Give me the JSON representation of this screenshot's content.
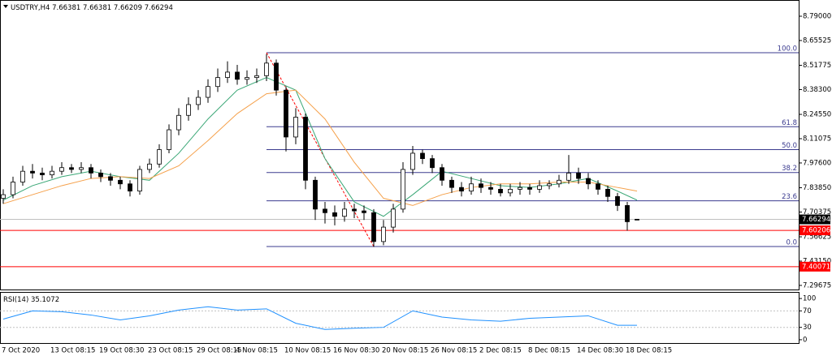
{
  "chart_data": {
    "type": "candlestick",
    "symbol": "USDTRY,H4",
    "categories": [
      "7 Oct 2020",
      null,
      null,
      null,
      null,
      "13 Oct 08:15",
      null,
      null,
      null,
      null,
      "19 Oct 08:30",
      null,
      null,
      null,
      null,
      "23 Oct 08:15",
      null,
      null,
      null,
      null,
      "29 Oct 08:15",
      null,
      null,
      null,
      "4 Nov 08:15",
      null,
      null,
      null,
      null,
      "10 Nov 08:15",
      null,
      null,
      null,
      null,
      "16 Nov 08:30",
      null,
      null,
      null,
      null,
      "20 Nov 08:15",
      null,
      null,
      null,
      null,
      "26 Nov 08:15",
      null,
      null,
      null,
      null,
      "2 Dec 08:15",
      null,
      null,
      null,
      null,
      "8 Dec 08:15",
      null,
      null,
      null,
      null,
      "14 Dec 08:30",
      null,
      null,
      null,
      null,
      "18 Dec 08:15",
      null
    ],
    "opens": [
      7.78,
      7.8,
      7.87,
      7.93,
      7.92,
      7.91,
      7.93,
      7.95,
      7.94,
      7.95,
      7.92,
      7.9,
      7.88,
      7.86,
      7.82,
      7.94,
      7.97,
      8.05,
      8.16,
      8.24,
      8.3,
      8.34,
      8.4,
      8.45,
      8.48,
      8.44,
      8.45,
      8.46,
      8.53,
      8.38,
      8.12,
      8.23,
      7.88,
      7.72,
      7.7,
      7.68,
      7.72,
      7.71,
      7.7,
      7.54,
      7.62,
      7.72,
      7.94,
      8.03,
      8.0,
      7.95,
      7.88,
      7.84,
      7.82,
      7.86,
      7.84,
      7.83,
      7.81,
      7.83,
      7.84,
      7.83,
      7.85,
      7.86,
      7.88,
      7.92,
      7.89,
      7.86,
      7.83,
      7.79,
      7.74,
      7.66381
    ],
    "highs": [
      7.83,
      7.9,
      7.96,
      7.97,
      7.95,
      7.96,
      7.98,
      7.97,
      7.98,
      7.97,
      7.94,
      7.92,
      7.9,
      7.88,
      7.96,
      8.0,
      8.08,
      8.19,
      8.28,
      8.34,
      8.38,
      8.44,
      8.5,
      8.54,
      8.52,
      8.49,
      8.5,
      8.58,
      8.55,
      8.4,
      8.28,
      8.25,
      7.9,
      7.76,
      7.74,
      7.76,
      7.75,
      7.74,
      7.72,
      7.66,
      7.75,
      7.98,
      8.07,
      8.05,
      8.02,
      7.97,
      7.9,
      7.87,
      7.9,
      7.89,
      7.87,
      7.86,
      7.86,
      7.87,
      7.86,
      7.88,
      7.88,
      7.91,
      8.02,
      7.95,
      7.92,
      7.88,
      7.85,
      7.81,
      7.76,
      7.66381
    ],
    "lows": [
      7.75,
      7.78,
      7.85,
      7.89,
      7.88,
      7.89,
      7.91,
      7.92,
      7.92,
      7.89,
      7.87,
      7.85,
      7.83,
      7.79,
      7.8,
      7.92,
      7.95,
      8.03,
      8.13,
      8.21,
      8.27,
      8.31,
      8.37,
      8.42,
      8.41,
      8.41,
      8.42,
      8.43,
      8.35,
      8.04,
      8.08,
      7.83,
      7.66,
      7.64,
      7.63,
      7.65,
      7.67,
      7.66,
      7.51,
      7.52,
      7.59,
      7.7,
      7.91,
      7.97,
      7.92,
      7.85,
      7.81,
      7.79,
      7.8,
      7.81,
      7.8,
      7.79,
      7.79,
      7.8,
      7.8,
      7.81,
      7.83,
      7.84,
      7.86,
      7.86,
      7.83,
      7.8,
      7.76,
      7.71,
      7.6,
      7.66209
    ],
    "closes": [
      7.8,
      7.87,
      7.93,
      7.92,
      7.91,
      7.93,
      7.95,
      7.94,
      7.95,
      7.92,
      7.9,
      7.88,
      7.86,
      7.82,
      7.94,
      7.97,
      8.05,
      8.16,
      8.24,
      8.3,
      8.34,
      8.4,
      8.45,
      8.48,
      8.44,
      8.45,
      8.46,
      8.53,
      8.38,
      8.12,
      8.23,
      7.88,
      7.72,
      7.7,
      7.68,
      7.72,
      7.71,
      7.7,
      7.54,
      7.62,
      7.72,
      7.94,
      8.03,
      8.0,
      7.95,
      7.88,
      7.84,
      7.82,
      7.86,
      7.84,
      7.83,
      7.81,
      7.83,
      7.84,
      7.83,
      7.85,
      7.86,
      7.88,
      7.92,
      7.89,
      7.86,
      7.83,
      7.79,
      7.74,
      7.65,
      7.66294
    ],
    "ylim": [
      7.274,
      8.862
    ],
    "yticks": [
      {
        "value": 8.79,
        "label": "8.79000"
      },
      8.65525,
      8.51775,
      {
        "value": 8.383,
        "label": "8.38300"
      },
      {
        "value": 8.2455,
        "label": "8.24550"
      },
      8.11075,
      {
        "value": 7.976,
        "label": "7.97600"
      },
      {
        "value": 7.8385,
        "label": "7.83850"
      },
      7.70375,
      7.56625,
      {
        "value": 7.4315,
        "label": "7.43150"
      },
      7.29675
    ],
    "moving_averages": [
      {
        "color": "#3aa776",
        "x": [
          0,
          3,
          6,
          9,
          12,
          15,
          18,
          21,
          24,
          27,
          30,
          33,
          36,
          39,
          42,
          45,
          48,
          51,
          54,
          57,
          60,
          63,
          65
        ],
        "values": [
          7.77,
          7.85,
          7.9,
          7.93,
          7.9,
          7.88,
          8.03,
          8.22,
          8.38,
          8.45,
          8.38,
          8.0,
          7.76,
          7.68,
          7.8,
          7.93,
          7.89,
          7.85,
          7.84,
          7.86,
          7.89,
          7.82,
          7.77
        ]
      },
      {
        "color": "#f5a04a",
        "x": [
          0,
          3,
          6,
          9,
          12,
          15,
          18,
          21,
          24,
          27,
          30,
          33,
          36,
          39,
          42,
          45,
          48,
          51,
          54,
          57,
          60,
          63,
          65
        ],
        "values": [
          7.75,
          7.8,
          7.85,
          7.89,
          7.9,
          7.89,
          7.96,
          8.1,
          8.25,
          8.36,
          8.38,
          8.22,
          7.98,
          7.78,
          7.74,
          7.8,
          7.84,
          7.86,
          7.86,
          7.87,
          7.87,
          7.84,
          7.82
        ]
      }
    ],
    "fib": {
      "color": "#3b3b8f",
      "x": [
        27,
        38
      ],
      "levels": [
        {
          "value": 8.5876,
          "label": "100.0"
        },
        {
          "value": 8.177,
          "label": "61.8"
        },
        {
          "value": 8.05,
          "label": "50.0"
        },
        {
          "value": 7.923,
          "label": "38.2"
        },
        {
          "value": 7.766,
          "label": "23.6"
        },
        {
          "value": 7.5125,
          "label": "0.0"
        }
      ]
    },
    "hlines": [
      {
        "value": 7.60206,
        "color": "#ff0000"
      },
      {
        "value": 7.40071,
        "color": "#ff0000"
      }
    ],
    "rsi": {
      "name": "RSI(14)",
      "color": "#1e90ff",
      "ylim": [
        -8,
        114
      ],
      "yticks": [
        100,
        70,
        30,
        0
      ],
      "x": [
        0,
        3,
        6,
        9,
        12,
        15,
        18,
        21,
        24,
        27,
        30,
        33,
        36,
        39,
        42,
        45,
        48,
        51,
        54,
        57,
        60,
        63,
        65
      ],
      "values": [
        50,
        70,
        68,
        60,
        48,
        58,
        72,
        80,
        72,
        75,
        40,
        25,
        28,
        30,
        70,
        55,
        48,
        45,
        52,
        55,
        58,
        35,
        35.1072
      ]
    }
  }
}
